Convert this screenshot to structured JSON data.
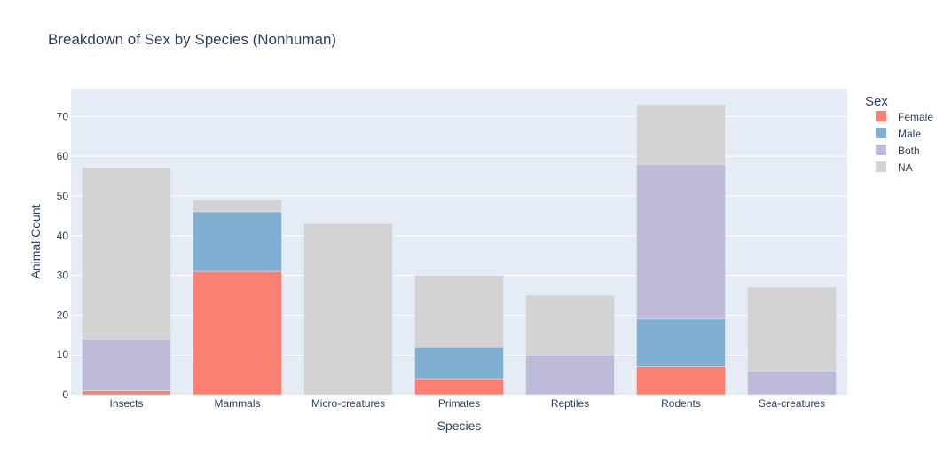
{
  "chart_data": {
    "type": "bar",
    "barmode": "stack",
    "title": "Breakdown of Sex by Species (Nonhuman)",
    "xlabel": "Species",
    "ylabel": "Animal Count",
    "ylim": [
      0,
      77
    ],
    "yticks": [
      0,
      10,
      20,
      30,
      40,
      50,
      60,
      70
    ],
    "grid": true,
    "legend_title": "Sex",
    "legend_position": "top-right",
    "categories": [
      "Insects",
      "Mammals",
      "Micro-creatures",
      "Primates",
      "Reptiles",
      "Rodents",
      "Sea-creatures"
    ],
    "series": [
      {
        "name": "Female",
        "color": "#fa8072",
        "values": [
          1,
          31,
          0,
          4,
          0,
          7,
          0
        ]
      },
      {
        "name": "Male",
        "color": "#7fb0d2",
        "values": [
          0,
          15,
          0,
          8,
          0,
          12,
          0
        ]
      },
      {
        "name": "Both",
        "color": "#bdbbd9",
        "values": [
          13,
          0,
          0,
          0,
          10,
          39,
          6
        ]
      },
      {
        "name": "NA",
        "color": "#d3d3d3",
        "values": [
          43,
          3,
          43,
          18,
          15,
          15,
          21
        ]
      }
    ],
    "colors": {
      "plot_bg": "#e5ecf6",
      "grid": "#ffffff",
      "text": "#2a3f5f",
      "tick_text": "#2a3f5f"
    }
  }
}
